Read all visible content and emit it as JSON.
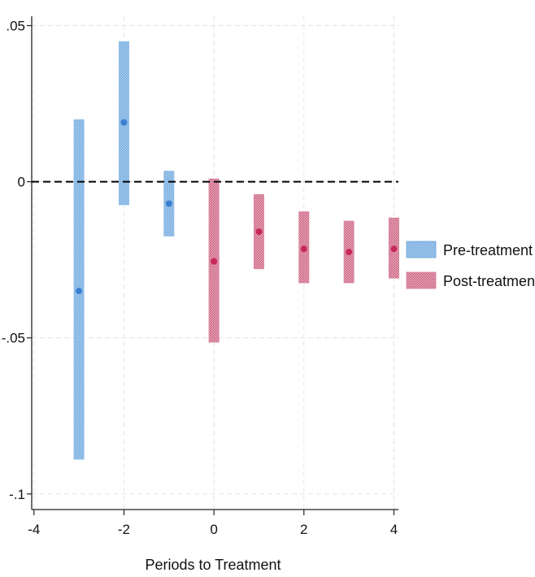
{
  "chart_data": {
    "type": "scatter",
    "title": "",
    "xlabel": "Periods to Treatment",
    "ylabel": "",
    "xlim": [
      -4.05,
      4.1
    ],
    "ylim": [
      -0.105,
      0.053
    ],
    "x_ticks": [
      -4,
      -2,
      0,
      2,
      4
    ],
    "x_tick_labels": [
      "-4",
      "-2",
      "0",
      "2",
      "4"
    ],
    "y_ticks": [
      0.05,
      0,
      -0.05,
      -0.1
    ],
    "y_tick_labels": [
      ".05",
      "0",
      "-.05",
      "-.1"
    ],
    "grid": true,
    "reference_line_y": 0,
    "legend_position": "right",
    "series": [
      {
        "name": "Pre-treatment",
        "color": "#6ea6da",
        "point_color": "#3b7fd0",
        "points": [
          {
            "x": -3,
            "y": -0.035,
            "ci_low": -0.089,
            "ci_high": 0.02
          },
          {
            "x": -2,
            "y": 0.019,
            "ci_low": -0.0075,
            "ci_high": 0.045
          },
          {
            "x": -1,
            "y": -0.007,
            "ci_low": -0.0175,
            "ci_high": 0.0035
          }
        ]
      },
      {
        "name": "Post-treatment",
        "color": "#d47c96",
        "point_color": "#c8285a",
        "points": [
          {
            "x": 0,
            "y": -0.0255,
            "ci_low": -0.0515,
            "ci_high": 0.001
          },
          {
            "x": 1,
            "y": -0.016,
            "ci_low": -0.028,
            "ci_high": -0.004
          },
          {
            "x": 2,
            "y": -0.0215,
            "ci_low": -0.0325,
            "ci_high": -0.0095
          },
          {
            "x": 3,
            "y": -0.0225,
            "ci_low": -0.0325,
            "ci_high": -0.0125
          },
          {
            "x": 4,
            "y": -0.0215,
            "ci_low": -0.031,
            "ci_high": -0.0115
          }
        ]
      }
    ]
  }
}
